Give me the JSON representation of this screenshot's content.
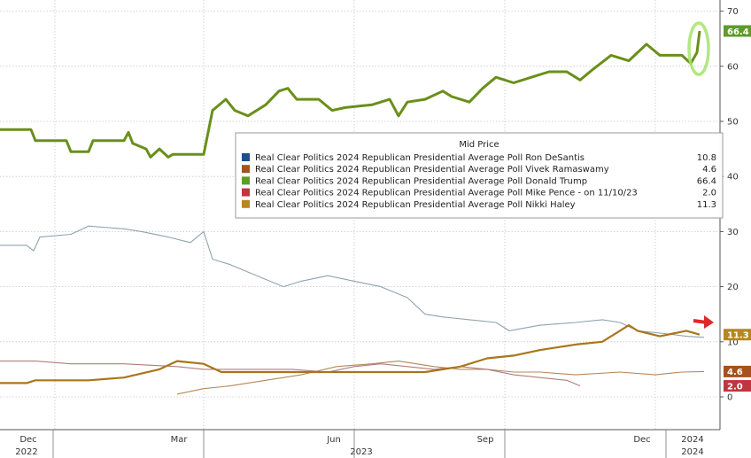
{
  "chart_data": {
    "type": "line",
    "title": "",
    "xlabel": "",
    "ylabel": "",
    "ylim": [
      -5,
      71
    ],
    "yticks": [
      0,
      10,
      20,
      30,
      40,
      50,
      60,
      70
    ],
    "grid": true,
    "legend_placement": "center-right",
    "legend_title": "Mid Price",
    "x_month_ticks": [
      "Dec",
      "Mar",
      "Jun",
      "Sep",
      "Dec"
    ],
    "x_year_labels": [
      "2022",
      "2023",
      "2024"
    ],
    "x_top_label": "2024",
    "series": [
      {
        "name": "Real Clear Politics 2024 Republican Presidential Average Poll Ron DeSantis",
        "legend_value": "10.8",
        "color": "#8fa3ad",
        "swatch": "#1f4e8c",
        "width": 1.1,
        "points": [
          [
            0,
            27.5
          ],
          [
            30,
            27.5
          ],
          [
            38,
            26.5
          ],
          [
            45,
            29
          ],
          [
            80,
            29.5
          ],
          [
            100,
            31
          ],
          [
            140,
            30.5
          ],
          [
            160,
            30
          ],
          [
            190,
            29
          ],
          [
            215,
            28
          ],
          [
            230,
            30
          ],
          [
            240,
            25
          ],
          [
            260,
            24
          ],
          [
            290,
            22
          ],
          [
            320,
            20
          ],
          [
            340,
            21
          ],
          [
            370,
            22
          ],
          [
            400,
            21
          ],
          [
            430,
            20
          ],
          [
            460,
            18
          ],
          [
            480,
            15
          ],
          [
            500,
            14.5
          ],
          [
            530,
            14
          ],
          [
            560,
            13.5
          ],
          [
            575,
            12
          ],
          [
            610,
            13
          ],
          [
            650,
            13.5
          ],
          [
            680,
            14
          ],
          [
            700,
            13.5
          ],
          [
            720,
            12
          ],
          [
            750,
            11.5
          ],
          [
            775,
            11
          ],
          [
            795,
            10.8
          ]
        ]
      },
      {
        "name": "Real Clear Politics 2024 Republican Presidential Average Poll Vivek Ramaswamy",
        "legend_value": "4.6",
        "color": "#b5875a",
        "swatch": "#a5521c",
        "width": 1.1,
        "points": [
          [
            200,
            0.5
          ],
          [
            230,
            1.5
          ],
          [
            260,
            2
          ],
          [
            300,
            3
          ],
          [
            340,
            4
          ],
          [
            380,
            5.5
          ],
          [
            420,
            6
          ],
          [
            450,
            6.5
          ],
          [
            490,
            5.5
          ],
          [
            520,
            5
          ],
          [
            550,
            5
          ],
          [
            580,
            4.5
          ],
          [
            610,
            4.5
          ],
          [
            650,
            4
          ],
          [
            700,
            4.5
          ],
          [
            740,
            4
          ],
          [
            770,
            4.5
          ],
          [
            795,
            4.6
          ]
        ]
      },
      {
        "name": "Real Clear Politics 2024 Republican Presidential Average Poll Donald Trump",
        "legend_value": "66.4",
        "color": "#6a8f1a",
        "swatch": "#5e9b2a",
        "width": 3,
        "points": [
          [
            0,
            48.5
          ],
          [
            35,
            48.5
          ],
          [
            40,
            46.5
          ],
          [
            75,
            46.5
          ],
          [
            80,
            44.5
          ],
          [
            100,
            44.5
          ],
          [
            105,
            46.5
          ],
          [
            140,
            46.5
          ],
          [
            145,
            48
          ],
          [
            150,
            46
          ],
          [
            165,
            45
          ],
          [
            170,
            43.5
          ],
          [
            180,
            45
          ],
          [
            190,
            43.5
          ],
          [
            195,
            44
          ],
          [
            230,
            44
          ],
          [
            235,
            48
          ],
          [
            240,
            52
          ],
          [
            255,
            54
          ],
          [
            265,
            52
          ],
          [
            280,
            51
          ],
          [
            300,
            53
          ],
          [
            315,
            55.5
          ],
          [
            325,
            56
          ],
          [
            335,
            54
          ],
          [
            360,
            54
          ],
          [
            375,
            52
          ],
          [
            390,
            52.5
          ],
          [
            420,
            53
          ],
          [
            440,
            54
          ],
          [
            450,
            51
          ],
          [
            460,
            53.5
          ],
          [
            480,
            54
          ],
          [
            500,
            55.5
          ],
          [
            510,
            54.5
          ],
          [
            530,
            53.5
          ],
          [
            545,
            56
          ],
          [
            560,
            58
          ],
          [
            580,
            57
          ],
          [
            600,
            58
          ],
          [
            620,
            59
          ],
          [
            640,
            59
          ],
          [
            655,
            57.5
          ],
          [
            670,
            59.5
          ],
          [
            690,
            62
          ],
          [
            710,
            61
          ],
          [
            730,
            64
          ],
          [
            745,
            62
          ],
          [
            770,
            62
          ],
          [
            780,
            60.5
          ],
          [
            787,
            62.5
          ],
          [
            790,
            66.4
          ]
        ]
      },
      {
        "name": "Real Clear Politics 2024 Republican Presidential Average Poll Mike Pence - on 11/10/23",
        "legend_value": "2.0",
        "color": "#b07d7d",
        "swatch": "#c03540",
        "width": 1.1,
        "points": [
          [
            0,
            6.5
          ],
          [
            40,
            6.5
          ],
          [
            80,
            6
          ],
          [
            140,
            6
          ],
          [
            200,
            5.5
          ],
          [
            230,
            5
          ],
          [
            280,
            5
          ],
          [
            330,
            5
          ],
          [
            370,
            4.5
          ],
          [
            400,
            5.5
          ],
          [
            430,
            6
          ],
          [
            460,
            5.5
          ],
          [
            490,
            5
          ],
          [
            520,
            5.5
          ],
          [
            550,
            5
          ],
          [
            580,
            4
          ],
          [
            610,
            3.5
          ],
          [
            640,
            3
          ],
          [
            655,
            2
          ]
        ]
      },
      {
        "name": "Real Clear Politics 2024 Republican Presidential Average Poll Nikki Haley",
        "legend_value": "11.3",
        "color": "#a8761a",
        "swatch": "#b8861e",
        "width": 2.2,
        "points": [
          [
            0,
            2.5
          ],
          [
            30,
            2.5
          ],
          [
            40,
            3
          ],
          [
            100,
            3
          ],
          [
            140,
            3.5
          ],
          [
            180,
            5
          ],
          [
            200,
            6.5
          ],
          [
            230,
            6
          ],
          [
            250,
            4.5
          ],
          [
            300,
            4.5
          ],
          [
            350,
            4.5
          ],
          [
            400,
            4.5
          ],
          [
            440,
            4.5
          ],
          [
            480,
            4.5
          ],
          [
            520,
            5.5
          ],
          [
            550,
            7
          ],
          [
            580,
            7.5
          ],
          [
            610,
            8.5
          ],
          [
            650,
            9.5
          ],
          [
            680,
            10
          ],
          [
            700,
            12
          ],
          [
            710,
            13
          ],
          [
            720,
            12
          ],
          [
            745,
            11
          ],
          [
            760,
            11.5
          ],
          [
            775,
            12
          ],
          [
            790,
            11.3
          ]
        ]
      }
    ]
  }
}
